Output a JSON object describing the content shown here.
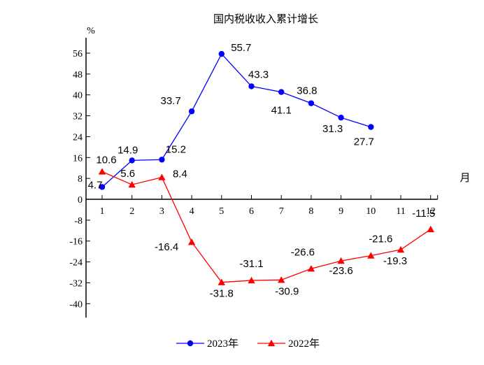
{
  "chart_data": {
    "type": "line",
    "title": "国内税收收入累计增长",
    "ylabel": "%",
    "xlabel": "月",
    "categories": [
      "1",
      "2",
      "3",
      "4",
      "5",
      "6",
      "7",
      "8",
      "9",
      "10",
      "11",
      "12"
    ],
    "ylim": [
      -40,
      56
    ],
    "yticks": [
      56,
      48,
      40,
      32,
      24,
      16,
      8,
      0,
      -8,
      -16,
      -24,
      -32,
      -40
    ],
    "grid": false,
    "legend_position": "bottom",
    "series": [
      {
        "name": "2023年",
        "color": "#0000ff",
        "marker": "circle",
        "x": [
          1,
          2,
          3,
          4,
          5,
          6,
          7,
          8,
          9,
          10
        ],
        "values": [
          4.7,
          14.9,
          15.2,
          33.7,
          55.7,
          43.3,
          41.1,
          36.8,
          31.3,
          27.7
        ]
      },
      {
        "name": "2022年",
        "color": "#ff0000",
        "marker": "triangle",
        "x": [
          1,
          2,
          3,
          4,
          5,
          6,
          7,
          8,
          9,
          10,
          11,
          12
        ],
        "values": [
          10.6,
          5.6,
          8.4,
          -16.4,
          -31.8,
          -31.1,
          -30.9,
          -26.6,
          -23.6,
          -21.6,
          -19.3,
          -11.5
        ]
      }
    ]
  }
}
